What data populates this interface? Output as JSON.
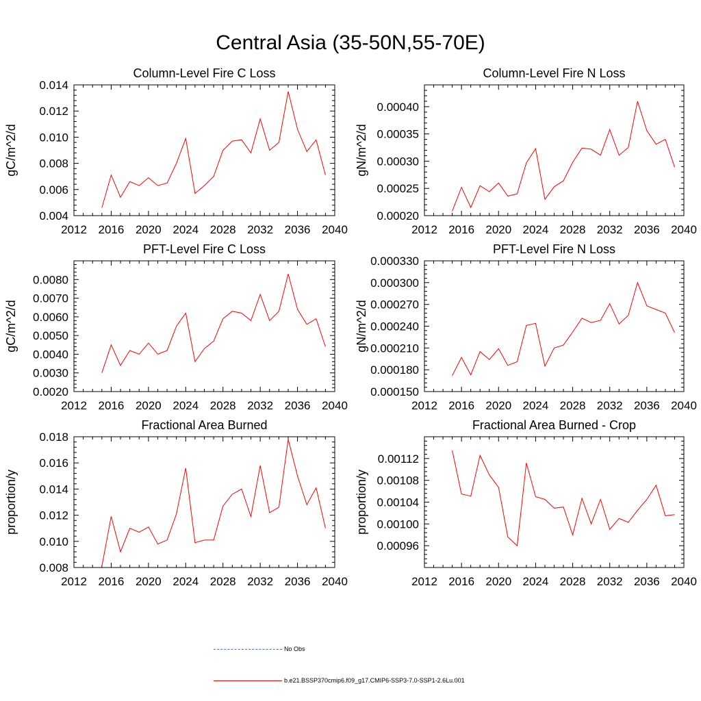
{
  "title": "Central Asia (35-50N,55-70E)",
  "colors": {
    "series": "#ff0000",
    "obs": "#5566cc",
    "axis": "#000000"
  },
  "legend": [
    {
      "label": "No Obs",
      "style": "dashed",
      "color": "#5566cc"
    },
    {
      "label": "b.e21.BSSP370cmip6.f09_g17.CMIP6-SSP3-7.0-SSP1-2.6Lu.001",
      "style": "solid",
      "color": "#ff0000"
    }
  ],
  "chart_data": [
    {
      "type": "line",
      "title": "Column-Level Fire C Loss",
      "ylabel": "gC/m^2/d",
      "xlim": [
        2012,
        2040
      ],
      "xticks": [
        "2012",
        "2016",
        "2020",
        "2024",
        "2028",
        "2032",
        "2036",
        "2040"
      ],
      "ylim": [
        0.004,
        0.014
      ],
      "yticks": [
        "0.004",
        "0.006",
        "0.008",
        "0.010",
        "0.012",
        "0.014"
      ],
      "ytick_values": [
        0.004,
        0.006,
        0.008,
        0.01,
        0.012,
        0.014
      ],
      "x": [
        2015,
        2016,
        2017,
        2018,
        2019,
        2020,
        2021,
        2022,
        2023,
        2024,
        2025,
        2026,
        2027,
        2028,
        2029,
        2030,
        2031,
        2032,
        2033,
        2034,
        2035,
        2036,
        2037,
        2038,
        2039
      ],
      "y": [
        0.0046,
        0.0071,
        0.0054,
        0.0066,
        0.0063,
        0.0069,
        0.0063,
        0.0065,
        0.008,
        0.0099,
        0.0057,
        0.0063,
        0.007,
        0.009,
        0.0097,
        0.0098,
        0.0088,
        0.0114,
        0.009,
        0.0096,
        0.0135,
        0.0106,
        0.0089,
        0.0098,
        0.0071
      ]
    },
    {
      "type": "line",
      "title": "Column-Level Fire N Loss",
      "ylabel": "gN/m^2/d",
      "xlim": [
        2012,
        2040
      ],
      "xticks": [
        "2012",
        "2016",
        "2020",
        "2024",
        "2028",
        "2032",
        "2036",
        "2040"
      ],
      "ylim": [
        0.0002,
        0.00044
      ],
      "yticks": [
        "0.00020",
        "0.00025",
        "0.00030",
        "0.00035",
        "0.00040"
      ],
      "ytick_values": [
        0.0002,
        0.00025,
        0.0003,
        0.00035,
        0.0004
      ],
      "x": [
        2015,
        2016,
        2017,
        2018,
        2019,
        2020,
        2021,
        2022,
        2023,
        2024,
        2025,
        2026,
        2027,
        2028,
        2029,
        2030,
        2031,
        2032,
        2033,
        2034,
        2035,
        2036,
        2037,
        2038,
        2039
      ],
      "y": [
        0.000208,
        0.000252,
        0.000215,
        0.000255,
        0.000244,
        0.00026,
        0.000236,
        0.00024,
        0.000297,
        0.000323,
        0.00023,
        0.000253,
        0.000264,
        0.000298,
        0.000324,
        0.000322,
        0.000311,
        0.000358,
        0.000311,
        0.000325,
        0.00041,
        0.000356,
        0.000331,
        0.00034,
        0.000289
      ]
    },
    {
      "type": "line",
      "title": "PFT-Level Fire C Loss",
      "ylabel": "gC/m^2/d",
      "xlim": [
        2012,
        2040
      ],
      "xticks": [
        "2012",
        "2016",
        "2020",
        "2024",
        "2028",
        "2032",
        "2036",
        "2040"
      ],
      "ylim": [
        0.002,
        0.009
      ],
      "yticks": [
        "0.0020",
        "0.0030",
        "0.0040",
        "0.0050",
        "0.0060",
        "0.0070",
        "0.0080"
      ],
      "ytick_values": [
        0.002,
        0.003,
        0.004,
        0.005,
        0.006,
        0.007,
        0.008
      ],
      "x": [
        2015,
        2016,
        2017,
        2018,
        2019,
        2020,
        2021,
        2022,
        2023,
        2024,
        2025,
        2026,
        2027,
        2028,
        2029,
        2030,
        2031,
        2032,
        2033,
        2034,
        2035,
        2036,
        2037,
        2038,
        2039
      ],
      "y": [
        0.003,
        0.0045,
        0.0034,
        0.0042,
        0.004,
        0.0046,
        0.004,
        0.0042,
        0.0055,
        0.0062,
        0.0036,
        0.0043,
        0.0047,
        0.0059,
        0.0063,
        0.0062,
        0.0058,
        0.0072,
        0.0058,
        0.0063,
        0.0083,
        0.0064,
        0.0056,
        0.0059,
        0.0044
      ]
    },
    {
      "type": "line",
      "title": "PFT-Level Fire N Loss",
      "ylabel": "gN/m^2/d",
      "xlim": [
        2012,
        2040
      ],
      "xticks": [
        "2012",
        "2016",
        "2020",
        "2024",
        "2028",
        "2032",
        "2036",
        "2040"
      ],
      "ylim": [
        0.00015,
        0.00033
      ],
      "yticks": [
        "0.000150",
        "0.000180",
        "0.000210",
        "0.000240",
        "0.000270",
        "0.000300",
        "0.000330"
      ],
      "ytick_values": [
        0.00015,
        0.00018,
        0.00021,
        0.00024,
        0.00027,
        0.0003,
        0.00033
      ],
      "x": [
        2015,
        2016,
        2017,
        2018,
        2019,
        2020,
        2021,
        2022,
        2023,
        2024,
        2025,
        2026,
        2027,
        2028,
        2029,
        2030,
        2031,
        2032,
        2033,
        2034,
        2035,
        2036,
        2037,
        2038,
        2039
      ],
      "y": [
        0.000172,
        0.000197,
        0.000173,
        0.000205,
        0.000194,
        0.000209,
        0.000186,
        0.000191,
        0.000241,
        0.000244,
        0.000185,
        0.00021,
        0.000214,
        0.000232,
        0.000251,
        0.000245,
        0.000248,
        0.000271,
        0.000243,
        0.000255,
        0.0003,
        0.000268,
        0.000263,
        0.000258,
        0.000231
      ]
    },
    {
      "type": "line",
      "title": "Fractional Area Burned",
      "ylabel": "proportion/y",
      "xlim": [
        2012,
        2040
      ],
      "xticks": [
        "2012",
        "2016",
        "2020",
        "2024",
        "2028",
        "2032",
        "2036",
        "2040"
      ],
      "ylim": [
        0.008,
        0.018
      ],
      "yticks": [
        "0.008",
        "0.010",
        "0.012",
        "0.014",
        "0.016",
        "0.018"
      ],
      "ytick_values": [
        0.008,
        0.01,
        0.012,
        0.014,
        0.016,
        0.018
      ],
      "x": [
        2015,
        2016,
        2017,
        2018,
        2019,
        2020,
        2021,
        2022,
        2023,
        2024,
        2025,
        2026,
        2027,
        2028,
        2029,
        2030,
        2031,
        2032,
        2033,
        2034,
        2035,
        2036,
        2037,
        2038,
        2039
      ],
      "y": [
        0.0081,
        0.0119,
        0.0092,
        0.011,
        0.0107,
        0.0111,
        0.0098,
        0.0101,
        0.0121,
        0.0156,
        0.0099,
        0.0101,
        0.0101,
        0.0127,
        0.0136,
        0.014,
        0.0119,
        0.0158,
        0.0122,
        0.0126,
        0.0178,
        0.015,
        0.0128,
        0.0141,
        0.011
      ]
    },
    {
      "type": "line",
      "title": "Fractional Area Burned - Crop",
      "ylabel": "proportion/y",
      "xlim": [
        2012,
        2040
      ],
      "xticks": [
        "2012",
        "2016",
        "2020",
        "2024",
        "2028",
        "2032",
        "2036",
        "2040"
      ],
      "ylim": [
        0.00092,
        0.00116
      ],
      "yticks": [
        "0.00096",
        "0.00100",
        "0.00104",
        "0.00108",
        "0.00112"
      ],
      "ytick_values": [
        0.00096,
        0.001,
        0.00104,
        0.00108,
        0.00112
      ],
      "x": [
        2015,
        2016,
        2017,
        2018,
        2019,
        2020,
        2021,
        2022,
        2023,
        2024,
        2025,
        2026,
        2027,
        2028,
        2029,
        2030,
        2031,
        2032,
        2033,
        2034,
        2035,
        2036,
        2037,
        2038,
        2039
      ],
      "y": [
        0.001135,
        0.001055,
        0.001051,
        0.001126,
        0.00109,
        0.001067,
        0.000976,
        0.00096,
        0.001112,
        0.00105,
        0.001045,
        0.001029,
        0.001031,
        0.00098,
        0.001047,
        0.001,
        0.001045,
        0.00099,
        0.00101,
        0.001003,
        0.001025,
        0.001045,
        0.001071,
        0.001015,
        0.001017
      ]
    }
  ]
}
